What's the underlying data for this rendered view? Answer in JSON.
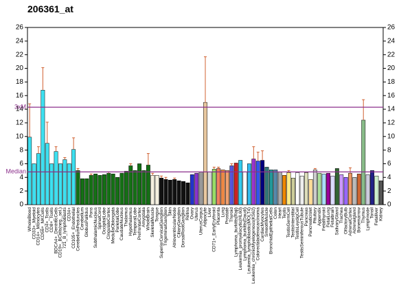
{
  "chart_data": {
    "type": "bar",
    "title": "206361_at",
    "categories": [
      "WholeBlood",
      "CD33+_Myeloid",
      "CD14+_Monocytes",
      "CD56+_NKCells",
      "CD4+_Tcells",
      "CD8+_Tcells",
      "BDCA4+_DentriticCells",
      "CD19+_BCells(neg._sel.)",
      "721_B_lymphoblasts",
      "CD34+",
      "CD105+_Endothelial",
      "CerebellumPeduncles",
      "Cerebellum",
      "GlobusPallidus",
      "Pons",
      "SubthalamicNucleus",
      "SpinalCord",
      "OccipitalLobe",
      "CingulateCortex",
      "MedullaOblongata",
      "ParietalLobe",
      "CaudateNucleus",
      "Thalamus",
      "Hypothalamus",
      "TemporalLobe",
      "PrefrontalCortex",
      "Amygdala",
      "WholeBrain",
      "SkeletalMuscle",
      "Tongue",
      "SuperiorCervicalGanglion",
      "TrigeminalGanglion",
      "Skin",
      "AtrioventricularNode",
      "CiliaryGanglion",
      "DorsalRootGanglion",
      "Retina",
      "Ovary",
      "Uterus",
      "UterusCorpus",
      "Adipocyte",
      "Liver",
      "CD71+_EarlyErythroid",
      "Placenta",
      "Lung",
      "Prostate",
      "Thyroid",
      "Lymphoma_burkitts(Raji)",
      "Leukemia_promyelocytic(HL60)",
      "Lymphoma_burkitts(Daudi)",
      "Leukemia_lymphoblastic(MOLT4)",
      "Leukemia_chronicMyelogenous(K562)",
      "Colorectaladenocarcinoma",
      "CardiacMyocytes",
      "SmoothMuscle",
      "BronchialEpithelialCells",
      "Colon",
      "Heart",
      "Testis",
      "TestisGermCell",
      "TestisInterstitial",
      "TestisLeydigCell",
      "TestisSeminiferousTubule",
      "Pancreas",
      "PancreaticIslet",
      "Pituitary",
      "Appendix",
      "Fetalthyroid",
      "FetalLung",
      "Fetalbrain",
      "SalivaryGland",
      "Trachea",
      "OlfactoryBulb",
      "AdrenalCortex",
      "Adrenalgland",
      "Bonemarrow",
      "Thymus",
      "Lymphnode",
      "Tonsil",
      "Fetalliver",
      "Kidney"
    ],
    "values": [
      9.9,
      6.0,
      7.5,
      16.8,
      9.0,
      6.0,
      7.8,
      6.0,
      6.6,
      6.0,
      8.1,
      5.0,
      3.8,
      3.8,
      4.3,
      4.5,
      4.3,
      4.4,
      4.6,
      4.5,
      4.0,
      4.6,
      4.9,
      5.7,
      5.0,
      6.0,
      5.0,
      5.8,
      4.3,
      4.3,
      3.9,
      3.7,
      3.6,
      3.7,
      3.5,
      3.4,
      3.2,
      4.4,
      4.6,
      4.8,
      15.0,
      4.8,
      5.2,
      5.3,
      5.1,
      5.0,
      5.7,
      6.1,
      6.5,
      4.8,
      6.0,
      6.7,
      6.4,
      6.5,
      5.5,
      5.1,
      5.1,
      4.8,
      4.3,
      4.7,
      3.9,
      4.7,
      4.2,
      4.7,
      3.7,
      5.1,
      4.6,
      4.5,
      4.6,
      4.2,
      5.3,
      4.4,
      4.0,
      4.6,
      4.0,
      4.5,
      12.4,
      4.4,
      5.0,
      4.2,
      3.5
    ],
    "errors": [
      4.9,
      null,
      1.0,
      3.3,
      3.1,
      null,
      0.7,
      null,
      0.3,
      null,
      1.7,
      0.3,
      null,
      null,
      0.2,
      null,
      null,
      null,
      0.2,
      null,
      null,
      null,
      null,
      0.3,
      null,
      null,
      null,
      1.7,
      0.3,
      null,
      0.3,
      0.3,
      null,
      0.2,
      null,
      null,
      null,
      null,
      null,
      null,
      6.7,
      null,
      0.3,
      0.2,
      null,
      null,
      0.3,
      null,
      null,
      null,
      null,
      1.8,
      1.3,
      1.4,
      null,
      null,
      null,
      null,
      null,
      0.3,
      null,
      null,
      null,
      null,
      null,
      0.2,
      null,
      null,
      null,
      null,
      null,
      null,
      null,
      0.8,
      null,
      null,
      3.0,
      null,
      null,
      null,
      null
    ],
    "colors": [
      "#3de0f0",
      "#3de0f0",
      "#3de0f0",
      "#3de0f0",
      "#3de0f0",
      "#3de0f0",
      "#3de0f0",
      "#3de0f0",
      "#3de0f0",
      "#3de0f0",
      "#3de0f0",
      "#157015",
      "#157015",
      "#157015",
      "#157015",
      "#157015",
      "#157015",
      "#157015",
      "#157015",
      "#157015",
      "#157015",
      "#157015",
      "#157015",
      "#157015",
      "#157015",
      "#157015",
      "#157015",
      "#157015",
      "#f5f0e0",
      "#f5f0e0",
      "#111111",
      "#111111",
      "#111111",
      "#111111",
      "#111111",
      "#111111",
      "#111111",
      "#2233cc",
      "#8833cc",
      "#999999",
      "#e8c8a0",
      "#d8d8d8",
      "#99dd66",
      "#f08060",
      "#ee8844",
      "#f0a070",
      "#5555dd",
      "#cc2222",
      "#33ccee",
      "#ffffff",
      "#33bbee",
      "#9933cc",
      "#3355ee",
      "#000080",
      "#337777",
      "#229999",
      "#5588aa",
      "#aaaaaa",
      "#ee8800",
      "#ffee88",
      "#cccc99",
      "#ffffff",
      "#eeeeee",
      "#ddddbb",
      "#ffdd99",
      "#cccccc",
      "#aadd99",
      "#aaddff",
      "#990099",
      "#ddddff",
      "#336633",
      "#cc99ff",
      "#9966ff",
      "#ee9966",
      "#bbbbbb",
      "#cc6633",
      "#88bb88",
      "#ccccdd",
      "#222288",
      "#cceecc",
      "#555555"
    ],
    "error_color": "#d06030",
    "reference_lines": [
      {
        "label": "3xM",
        "value": 14.3,
        "color": "#8b2f8b"
      },
      {
        "label": "Median",
        "value": 4.8,
        "color": "#8b2f8b"
      }
    ],
    "ylim": [
      0,
      26
    ],
    "yticks": [
      0,
      2,
      4,
      6,
      8,
      10,
      12,
      14,
      16,
      18,
      20,
      22,
      24,
      26
    ],
    "right_axis": true
  }
}
